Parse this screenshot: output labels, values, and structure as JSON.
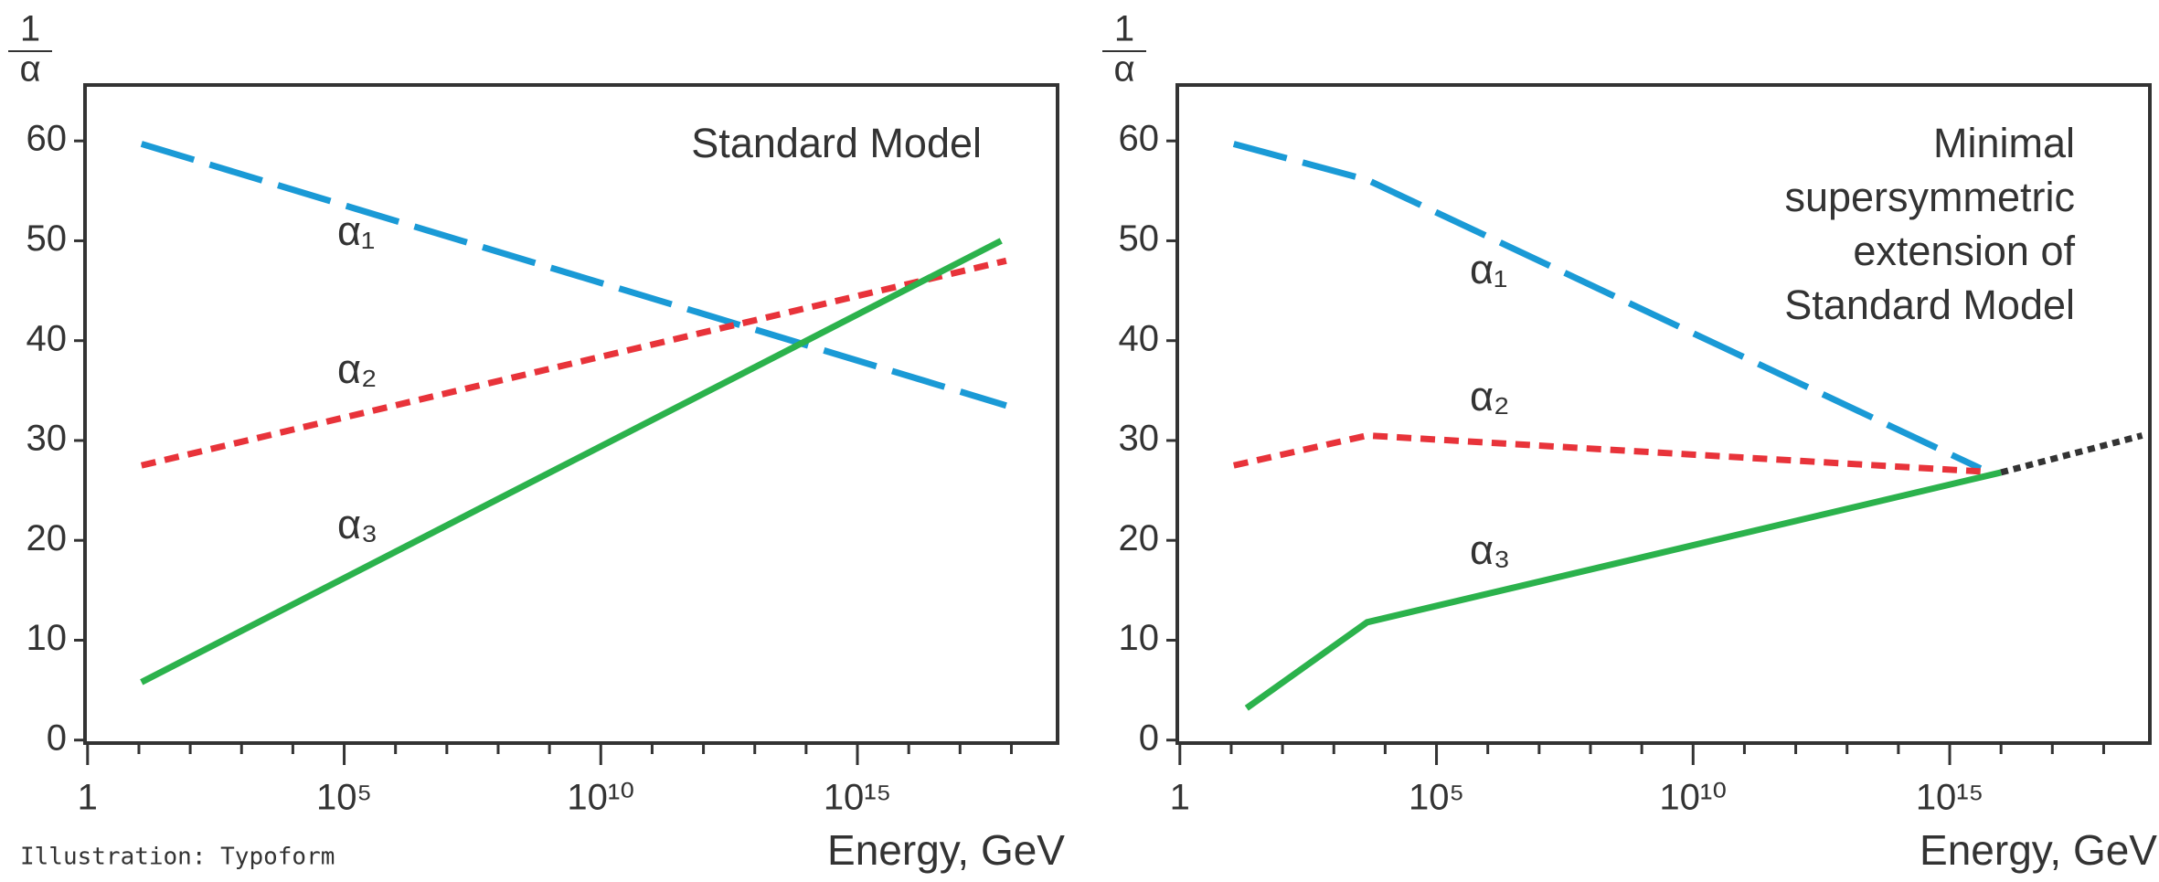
{
  "credit": "Illustration: Typoform",
  "chart_data": [
    {
      "type": "line",
      "title": "Standard Model",
      "xlabel": "Energy, GeV",
      "ylabel": {
        "numerator": "1",
        "denominator": "α"
      },
      "xlim": [
        -0.05,
        18.9
      ],
      "ylim": [
        -0.3,
        65.6
      ],
      "xticks": [
        {
          "value": 0,
          "label": "1"
        },
        {
          "value": 5,
          "label": "10⁵"
        },
        {
          "value": 10,
          "label": "10¹⁰"
        },
        {
          "value": 15,
          "label": "10¹⁵"
        }
      ],
      "xminor_ticks": [
        1,
        2,
        3,
        4,
        6,
        7,
        8,
        9,
        11,
        12,
        13,
        14,
        16,
        17,
        18
      ],
      "yticks": [
        0,
        10,
        20,
        30,
        40,
        50,
        60
      ],
      "series": [
        {
          "name": "α₁",
          "color": "#1a9ad6",
          "style": "long-dash",
          "x": [
            1.05,
            17.9
          ],
          "values": [
            59.7,
            33.5
          ]
        },
        {
          "name": "α₂",
          "color": "#e8333a",
          "style": "short-dash",
          "x": [
            1.05,
            17.9
          ],
          "values": [
            27.5,
            48
          ]
        },
        {
          "name": "α₃",
          "color": "#2bb24c",
          "style": "solid",
          "x": [
            1.05,
            17.8
          ],
          "values": [
            5.8,
            50
          ]
        }
      ]
    },
    {
      "type": "line",
      "title": [
        "Minimal",
        "supersymmetric",
        "extension of",
        "Standard Model"
      ],
      "xlabel": "Energy, GeV",
      "ylabel": {
        "numerator": "1",
        "denominator": "α"
      },
      "xlim": [
        -0.05,
        18.9
      ],
      "ylim": [
        -0.3,
        65.6
      ],
      "xticks": [
        {
          "value": 0,
          "label": "1"
        },
        {
          "value": 5,
          "label": "10⁵"
        },
        {
          "value": 10,
          "label": "10¹⁰"
        },
        {
          "value": 15,
          "label": "10¹⁵"
        }
      ],
      "xminor_ticks": [
        1,
        2,
        3,
        4,
        6,
        7,
        8,
        9,
        11,
        12,
        13,
        14,
        16,
        17,
        18
      ],
      "yticks": [
        0,
        10,
        20,
        30,
        40,
        50,
        60
      ],
      "series": [
        {
          "name": "α₁",
          "color": "#1a9ad6",
          "style": "long-dash",
          "x": [
            1.05,
            3.65,
            15.6
          ],
          "values": [
            59.7,
            56.1,
            27.2
          ]
        },
        {
          "name": "α₂",
          "color": "#e8333a",
          "style": "short-dash",
          "x": [
            1.05,
            3.65,
            15.6
          ],
          "values": [
            27.5,
            30.5,
            26.9
          ]
        },
        {
          "name": "α₃",
          "color": "#2bb24c",
          "style": "solid",
          "x": [
            1.3,
            3.65,
            16
          ],
          "values": [
            3.2,
            11.8,
            26.8
          ]
        },
        {
          "color": "#333333",
          "style": "dotted",
          "x": [
            16,
            18.75
          ],
          "values": [
            26.8,
            30.5
          ]
        }
      ]
    }
  ]
}
